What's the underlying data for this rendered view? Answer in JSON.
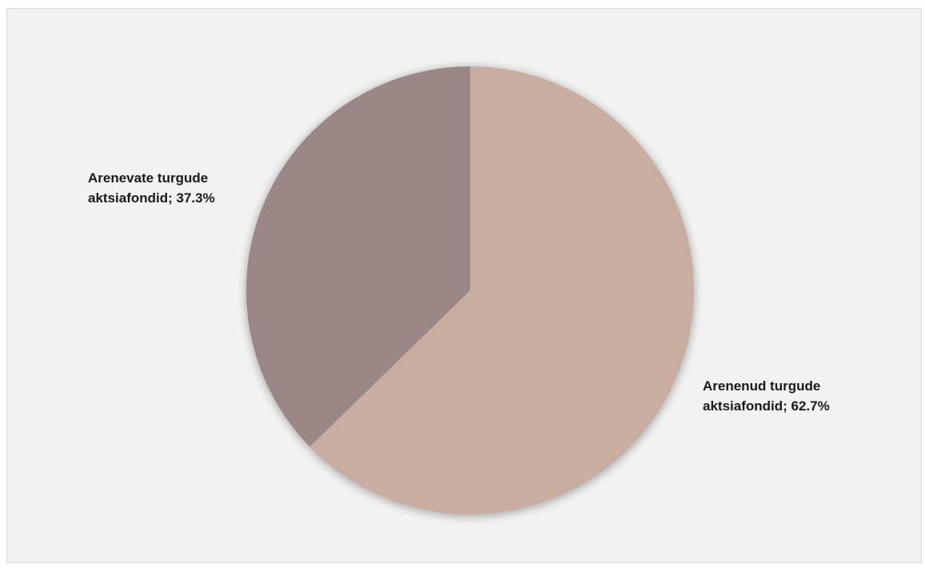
{
  "chart_data": {
    "type": "pie",
    "title": "",
    "slices": [
      {
        "label_line1": "Arenenud turgude",
        "label_line2": "aktsiafondid; 62.7%",
        "category": "Arenenud turgude aktsiafondid",
        "value": 62.7,
        "color": "#c8ada0"
      },
      {
        "label_line1": "Arenevate turgude",
        "label_line2": "aktsiafondid; 37.3%",
        "category": "Arenevate turgude aktsiafondid",
        "value": 37.3,
        "color": "#9b8886"
      }
    ],
    "start_angle_deg": 0,
    "direction": "clockwise",
    "legend": "none",
    "background_color": "#f2f2f2"
  }
}
